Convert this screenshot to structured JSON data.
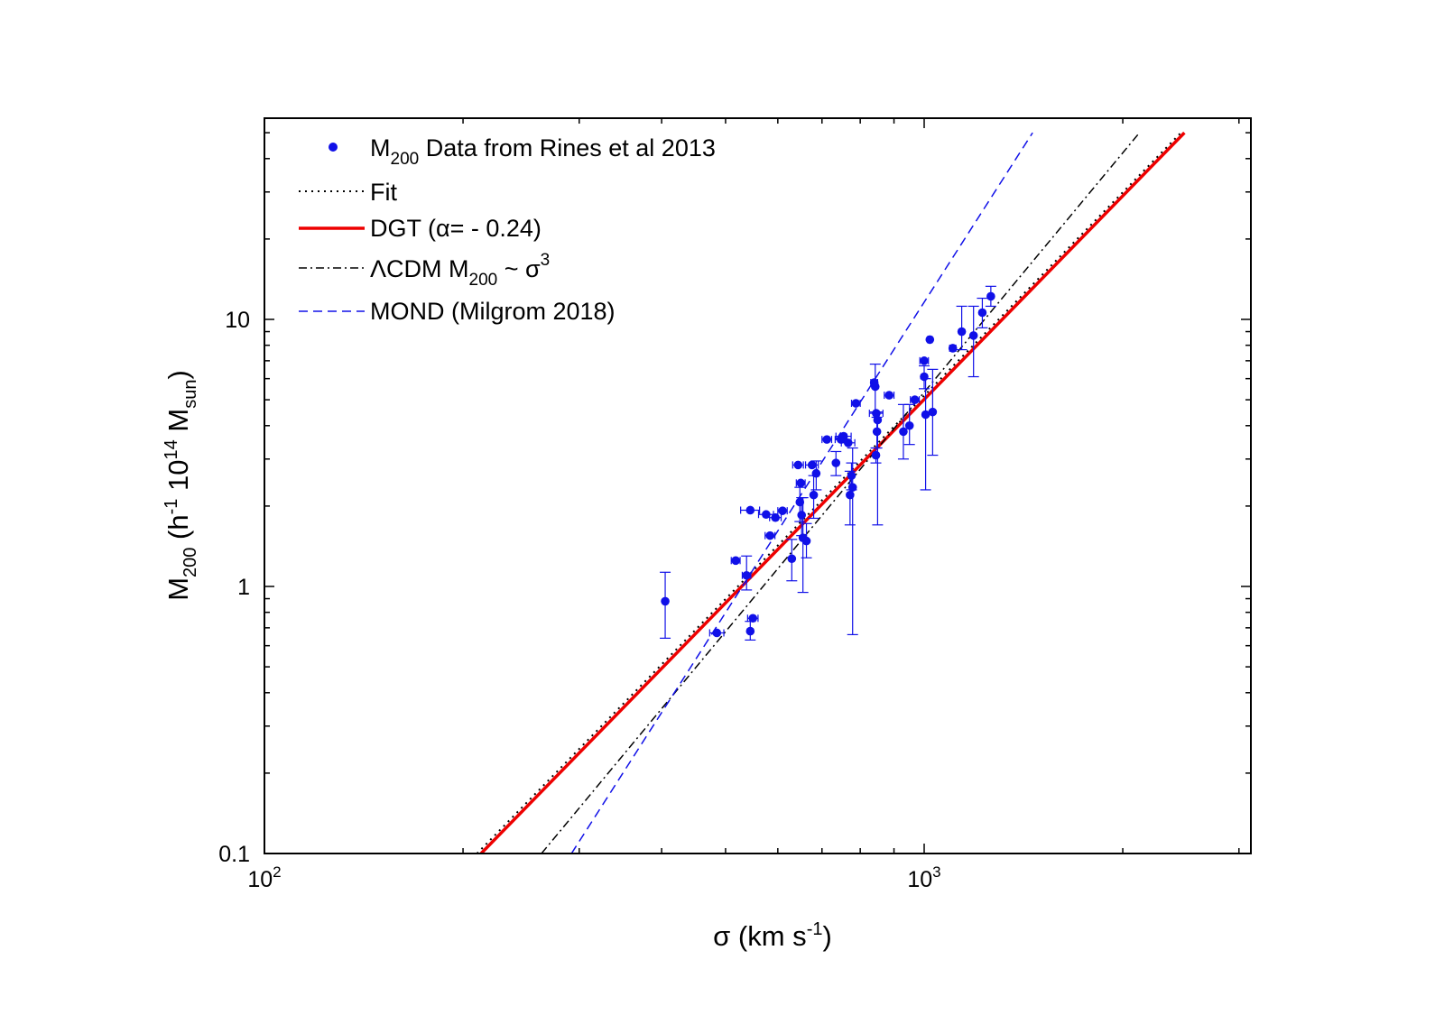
{
  "chart_data": {
    "type": "scatter",
    "xscale": "log",
    "yscale": "log",
    "xlim": [
      100,
      3200
    ],
    "ylim": [
      0.1,
      50
    ],
    "x_ticks": [
      {
        "value": 100,
        "base": "10",
        "exp": "2"
      },
      {
        "value": 1000,
        "base": "10",
        "exp": "3"
      }
    ],
    "y_ticks": [
      {
        "value": 0.1,
        "label": "0.1"
      },
      {
        "value": 1,
        "label": "1"
      },
      {
        "value": 10,
        "label": "10"
      }
    ],
    "xlabel": {
      "main": "σ (km s",
      "sup": "-1",
      "end": ")"
    },
    "ylabel": {
      "m": "M",
      "sub1": "200",
      "t1": " (h",
      "sup1": "-1",
      "t2": " 10",
      "sup2": "14",
      "t3": " M",
      "sub2": "sun",
      "t4": ")"
    },
    "legend": {
      "position": "top-left",
      "items": [
        {
          "key": "data",
          "pre": "M",
          "sub": "200",
          "post": " Data from Rines et al 2013"
        },
        {
          "key": "fit",
          "text": "Fit"
        },
        {
          "key": "dgt",
          "text": "DGT (α= - 0.24)"
        },
        {
          "key": "lcdm",
          "pre": "ΛCDM M",
          "sub": "200",
          "mid": " ~ σ",
          "sup": "3"
        },
        {
          "key": "mond",
          "text": "MOND (Milgrom 2018)"
        }
      ]
    },
    "colors": {
      "data": "#1010e8",
      "fit": "#000000",
      "dgt": "#ee0000",
      "lcdm": "#000000",
      "mond": "#1010e8"
    },
    "series": [
      {
        "name": "Fit",
        "kind": "line",
        "style": "dotted",
        "x": [
          210,
          2450
        ],
        "y": [
          0.1,
          50
        ]
      },
      {
        "name": "DGT (α= - 0.24)",
        "kind": "line",
        "style": "solid",
        "x": [
          213,
          2480
        ],
        "y": [
          0.1,
          50
        ]
      },
      {
        "name": "ΛCDM M200 ~ σ3",
        "kind": "line",
        "style": "dashdot",
        "x": [
          263,
          2120
        ],
        "y": [
          0.1,
          50
        ]
      },
      {
        "name": "MOND (Milgrom 2018)",
        "kind": "line",
        "style": "dashed",
        "x": [
          292,
          1460
        ],
        "y": [
          0.1,
          50
        ]
      },
      {
        "name": "M200 Data from Rines et al 2013",
        "kind": "scatter",
        "points": [
          {
            "x": 405,
            "y": 0.88,
            "ylo": 0.64,
            "yhi": 1.13
          },
          {
            "x": 485,
            "y": 0.67,
            "xerr": 12
          },
          {
            "x": 518,
            "y": 1.25,
            "xerr": 8
          },
          {
            "x": 538,
            "y": 1.1,
            "ylo": 0.97,
            "yhi": 1.3,
            "xerr": 8
          },
          {
            "x": 545,
            "y": 0.68,
            "ylo": 0.63,
            "yhi": 0.74
          },
          {
            "x": 550,
            "y": 0.76,
            "xerr": 10
          },
          {
            "x": 545,
            "y": 1.93,
            "xerr": 18
          },
          {
            "x": 576,
            "y": 1.86,
            "xerr": 15
          },
          {
            "x": 584,
            "y": 1.55,
            "xerr": 10
          },
          {
            "x": 595,
            "y": 1.81,
            "xerr": 12
          },
          {
            "x": 610,
            "y": 1.92,
            "xerr": 10
          },
          {
            "x": 630,
            "y": 1.27,
            "ylo": 1.05,
            "yhi": 1.5
          },
          {
            "x": 644,
            "y": 2.85,
            "xerr": 12
          },
          {
            "x": 650,
            "y": 2.44,
            "xerr": 10
          },
          {
            "x": 648,
            "y": 2.07,
            "ylo": 1.75,
            "yhi": 2.35
          },
          {
            "x": 652,
            "y": 1.85,
            "ylo": 1.55,
            "yhi": 2.15
          },
          {
            "x": 655,
            "y": 1.52,
            "ylo": 0.95,
            "yhi": 2.15
          },
          {
            "x": 663,
            "y": 1.48,
            "ylo": 1.28,
            "yhi": 1.72
          },
          {
            "x": 676,
            "y": 2.85,
            "xerr": 15
          },
          {
            "x": 680,
            "y": 2.2,
            "ylo": 1.8,
            "yhi": 2.6
          },
          {
            "x": 686,
            "y": 2.65,
            "ylo": 2.3,
            "yhi": 2.95
          },
          {
            "x": 712,
            "y": 3.55,
            "xerr": 12
          },
          {
            "x": 735,
            "y": 2.9,
            "ylo": 2.6,
            "yhi": 3.2
          },
          {
            "x": 748,
            "y": 3.55,
            "xerr": 15
          },
          {
            "x": 755,
            "y": 3.65,
            "xerr": 20
          },
          {
            "x": 767,
            "y": 3.45,
            "xerr": 18
          },
          {
            "x": 772,
            "y": 2.2,
            "ylo": 1.7,
            "yhi": 2.7
          },
          {
            "x": 776,
            "y": 2.6,
            "ylo": 2.3,
            "yhi": 2.9
          },
          {
            "x": 779,
            "y": 2.35,
            "ylo": 0.66,
            "yhi": 3.3
          },
          {
            "x": 788,
            "y": 4.85,
            "xerr": 12
          },
          {
            "x": 840,
            "y": 5.8,
            "xerr": 10
          },
          {
            "x": 843,
            "y": 5.6,
            "ylo": 4.5,
            "yhi": 6.8
          },
          {
            "x": 846,
            "y": 4.45,
            "xerr": 20
          },
          {
            "x": 848,
            "y": 3.8,
            "ylo": 3.3,
            "yhi": 4.3
          },
          {
            "x": 850,
            "y": 4.2,
            "ylo": 1.7,
            "yhi": 4.5
          },
          {
            "x": 845,
            "y": 3.1,
            "ylo": 2.9,
            "yhi": 3.3
          },
          {
            "x": 885,
            "y": 5.2,
            "xerr": 15
          },
          {
            "x": 930,
            "y": 3.8,
            "ylo": 3.0,
            "yhi": 4.8
          },
          {
            "x": 950,
            "y": 4.0,
            "ylo": 3.4,
            "yhi": 4.8
          },
          {
            "x": 968,
            "y": 5.0,
            "xerr": 15
          },
          {
            "x": 1000,
            "y": 7.0,
            "xerr": 15
          },
          {
            "x": 1000,
            "y": 6.1,
            "ylo": 5.5,
            "yhi": 6.7
          },
          {
            "x": 1005,
            "y": 4.4,
            "ylo": 2.3,
            "yhi": 6.0
          },
          {
            "x": 1020,
            "y": 8.4,
            "xerr": 8
          },
          {
            "x": 1030,
            "y": 4.5,
            "ylo": 3.1,
            "yhi": 6.5
          },
          {
            "x": 1105,
            "y": 7.8,
            "xerr": 12
          },
          {
            "x": 1140,
            "y": 9.0,
            "ylo": 7.7,
            "yhi": 11.2
          },
          {
            "x": 1188,
            "y": 8.7,
            "ylo": 6.1,
            "yhi": 11.2
          },
          {
            "x": 1225,
            "y": 10.6,
            "ylo": 9.3,
            "yhi": 12.0
          },
          {
            "x": 1262,
            "y": 12.2,
            "ylo": 11.2,
            "yhi": 13.3
          }
        ]
      }
    ]
  }
}
